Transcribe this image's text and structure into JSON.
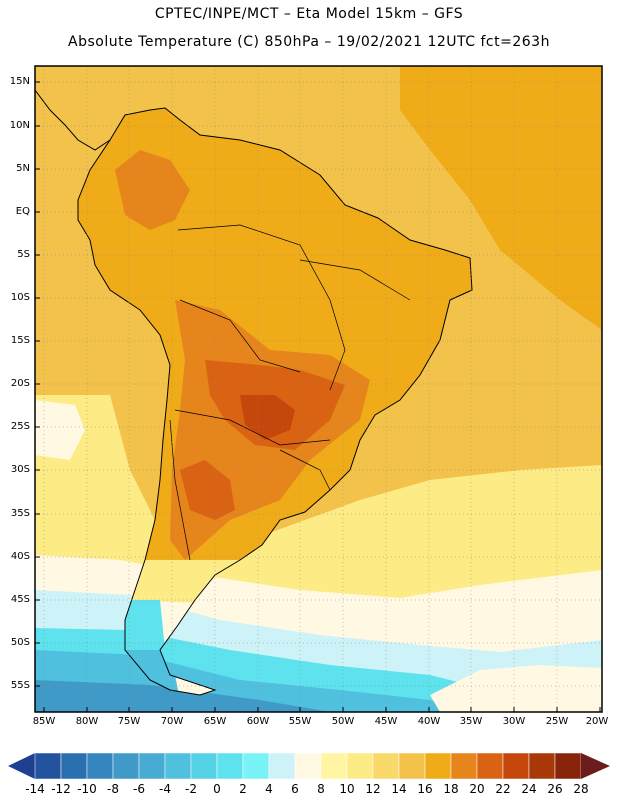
{
  "header": {
    "line1": "CPTEC/INPE/MCT –  Eta Model 15km – GFS",
    "line2": "Absolute Temperature (C) 850hPa – 19/02/2021 12UTC fct=263h"
  },
  "axes": {
    "lat_labels": [
      "15N",
      "10N",
      "5N",
      "EQ",
      "5S",
      "10S",
      "15S",
      "20S",
      "25S",
      "30S",
      "35S",
      "40S",
      "45S",
      "50S",
      "55S"
    ],
    "lon_labels": [
      "85W",
      "80W",
      "75W",
      "70W",
      "65W",
      "60W",
      "55W",
      "50W",
      "45W",
      "40W",
      "35W",
      "30W",
      "25W",
      "20W"
    ]
  },
  "colorbar": {
    "labels": [
      "-14",
      "-12",
      "-10",
      "-8",
      "-6",
      "-4",
      "-2",
      "0",
      "2",
      "4",
      "6",
      "8",
      "10",
      "12",
      "14",
      "16",
      "18",
      "20",
      "22",
      "24",
      "26",
      "28"
    ],
    "colors": [
      "#1f3f8f",
      "#23539f",
      "#2a6fb0",
      "#3585be",
      "#3f9ac8",
      "#48abd3",
      "#4fc0dd",
      "#56d2e6",
      "#5ee3ee",
      "#78f3f6",
      "#cdf3f8",
      "#fff9e3",
      "#fff5a3",
      "#fdeb85",
      "#f9d96a",
      "#f3c24b",
      "#efab18",
      "#e6851b",
      "#da6313",
      "#c6470c",
      "#a93808",
      "#87240a",
      "#6b1c1c"
    ]
  },
  "map": {
    "colors": {
      "ocean_warm": "#f3c24b",
      "land": "#efab18",
      "hot": "#e6851b",
      "hotter": "#da6313",
      "hottest": "#c6470c",
      "cool_band": "#fdeb85",
      "cream": "#fff9e3",
      "cyan_light": "#cdf3f8",
      "cyan": "#5ee3ee",
      "blue_mid": "#4fc0dd",
      "blue_dark": "#3f9ac8"
    }
  }
}
